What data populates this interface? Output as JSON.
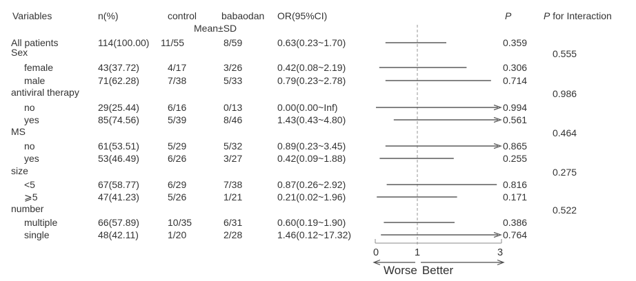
{
  "colors": {
    "text": "#333333",
    "ci_line": "#5a5a5a",
    "reference_line": "#a6a6a6",
    "axis": "#4a4a4a"
  },
  "chart_data": {
    "type": "forest",
    "columns": {
      "variables": "Variables",
      "n_percent": "n(%)",
      "control": "control",
      "babaodan": "babaodan",
      "or_ci": "OR(95%CI)"
    },
    "mean_sd_label": "Mean±SD",
    "p_header": "P",
    "interaction_header": {
      "prefix": "P",
      "suffix": "for Interaction"
    },
    "axis": {
      "min": 0,
      "max": 3,
      "ticks": [
        0,
        1,
        3
      ],
      "reference_value": 1,
      "worse_label": "Worse",
      "better_label": "Better"
    },
    "rows": [
      {
        "label": "All patients",
        "indent": false,
        "group": false,
        "n": "114(100.00)",
        "control": "11/55",
        "babaodan": "8/59",
        "or": "0.63(0.23~1.70)",
        "ci_low": 0.23,
        "ci_high": 1.7,
        "arrow": false,
        "p": "0.359",
        "p_interaction": ""
      },
      {
        "label": "Sex",
        "indent": false,
        "group": true,
        "p_interaction": "0.555"
      },
      {
        "label": "female",
        "indent": true,
        "group": false,
        "n": "43(37.72)",
        "control": "4/17",
        "babaodan": "3/26",
        "or": "0.42(0.08~2.19)",
        "ci_low": 0.08,
        "ci_high": 2.19,
        "arrow": false,
        "p": "0.306",
        "p_interaction": ""
      },
      {
        "label": "male",
        "indent": true,
        "group": false,
        "n": "71(62.28)",
        "control": "7/38",
        "babaodan": "5/33",
        "or": "0.79(0.23~2.78)",
        "ci_low": 0.23,
        "ci_high": 2.78,
        "arrow": false,
        "p": "0.714",
        "p_interaction": ""
      },
      {
        "label": "antiviral therapy",
        "indent": false,
        "group": true,
        "p_interaction": "0.986"
      },
      {
        "label": "no",
        "indent": true,
        "group": false,
        "n": "29(25.44)",
        "control": "6/16",
        "babaodan": "0/13",
        "or": "0.00(0.00~Inf)",
        "ci_low": 0.0,
        "ci_high": 999,
        "arrow": true,
        "p": "0.994",
        "p_interaction": ""
      },
      {
        "label": "yes",
        "indent": true,
        "group": false,
        "n": "85(74.56)",
        "control": "5/39",
        "babaodan": "8/46",
        "or": "1.43(0.43~4.80)",
        "ci_low": 0.43,
        "ci_high": 4.8,
        "arrow": true,
        "p": "0.561",
        "p_interaction": ""
      },
      {
        "label": "MS",
        "indent": false,
        "group": true,
        "p_interaction": "0.464"
      },
      {
        "label": "no",
        "indent": true,
        "group": false,
        "n": "61(53.51)",
        "control": "5/29",
        "babaodan": "5/32",
        "or": "0.89(0.23~3.45)",
        "ci_low": 0.23,
        "ci_high": 3.45,
        "arrow": true,
        "p": "0.865",
        "p_interaction": ""
      },
      {
        "label": "yes",
        "indent": true,
        "group": false,
        "n": "53(46.49)",
        "control": "6/26",
        "babaodan": "3/27",
        "or": "0.42(0.09~1.88)",
        "ci_low": 0.09,
        "ci_high": 1.88,
        "arrow": false,
        "p": "0.255",
        "p_interaction": ""
      },
      {
        "label": "size",
        "indent": false,
        "group": true,
        "p_interaction": "0.275"
      },
      {
        "label": "<5",
        "indent": true,
        "group": false,
        "n": "67(58.77)",
        "control": "6/29",
        "babaodan": "7/38",
        "or": "0.87(0.26~2.92)",
        "ci_low": 0.26,
        "ci_high": 2.92,
        "arrow": false,
        "p": "0.816",
        "p_interaction": ""
      },
      {
        "label": "⩾5",
        "indent": true,
        "group": false,
        "n": "47(41.23)",
        "control": "5/26",
        "babaodan": "1/21",
        "or": "0.21(0.02~1.96)",
        "ci_low": 0.02,
        "ci_high": 1.96,
        "arrow": false,
        "p": "0.171",
        "p_interaction": ""
      },
      {
        "label": "number",
        "indent": false,
        "group": true,
        "p_interaction": "0.522"
      },
      {
        "label": "multiple",
        "indent": true,
        "group": false,
        "n": "66(57.89)",
        "control": "10/35",
        "babaodan": "6/31",
        "or": "0.60(0.19~1.90)",
        "ci_low": 0.19,
        "ci_high": 1.9,
        "arrow": false,
        "p": "0.386",
        "p_interaction": ""
      },
      {
        "label": "single",
        "indent": true,
        "group": false,
        "n": "48(42.11)",
        "control": "1/20",
        "babaodan": "2/28",
        "or": "1.46(0.12~17.32)",
        "ci_low": 0.12,
        "ci_high": 17.32,
        "arrow": true,
        "p": "0.764",
        "p_interaction": ""
      }
    ]
  }
}
